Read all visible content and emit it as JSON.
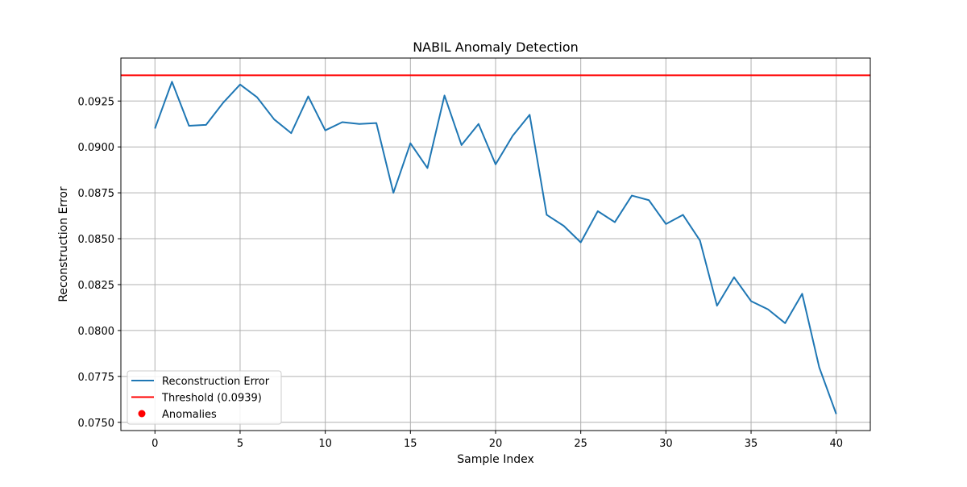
{
  "chart_data": {
    "type": "line",
    "title": "NABIL Anomaly Detection",
    "xlabel": "Sample Index",
    "ylabel": "Reconstruction Error",
    "xlim": [
      -2,
      42
    ],
    "ylim": [
      0.07455,
      0.09484
    ],
    "xticks": [
      0,
      5,
      10,
      15,
      20,
      25,
      30,
      35,
      40
    ],
    "xtick_labels": [
      "0",
      "5",
      "10",
      "15",
      "20",
      "25",
      "30",
      "35",
      "40"
    ],
    "yticks": [
      0.075,
      0.0775,
      0.08,
      0.0825,
      0.085,
      0.0875,
      0.09,
      0.0925
    ],
    "ytick_labels": [
      "0.0750",
      "0.0775",
      "0.0800",
      "0.0825",
      "0.0850",
      "0.0875",
      "0.0900",
      "0.0925"
    ],
    "grid": true,
    "legend_position": "lower-left",
    "series": [
      {
        "name": "Reconstruction Error",
        "kind": "line",
        "color": "#1f77b4",
        "x": [
          0,
          1,
          2,
          3,
          4,
          5,
          6,
          7,
          8,
          9,
          10,
          11,
          12,
          13,
          14,
          15,
          16,
          17,
          18,
          19,
          20,
          21,
          22,
          23,
          24,
          25,
          26,
          27,
          28,
          29,
          30,
          31,
          32,
          33,
          34,
          35,
          36,
          37,
          38,
          39,
          40
        ],
        "values": [
          0.091,
          0.09355,
          0.09115,
          0.0912,
          0.0924,
          0.0934,
          0.0927,
          0.0915,
          0.09075,
          0.09275,
          0.0909,
          0.09135,
          0.09125,
          0.0913,
          0.0875,
          0.0902,
          0.08885,
          0.0928,
          0.0901,
          0.09125,
          0.08905,
          0.0906,
          0.09175,
          0.0863,
          0.0857,
          0.0848,
          0.0865,
          0.0859,
          0.08735,
          0.0871,
          0.0858,
          0.0863,
          0.0849,
          0.08135,
          0.0829,
          0.0816,
          0.08115,
          0.0804,
          0.082,
          0.078,
          0.07545
        ]
      },
      {
        "name": "Threshold (0.0939)",
        "kind": "hline",
        "color": "#ff0000",
        "value": 0.0939
      },
      {
        "name": "Anomalies",
        "kind": "scatter",
        "color": "#ff0000",
        "x": [],
        "values": []
      }
    ]
  }
}
